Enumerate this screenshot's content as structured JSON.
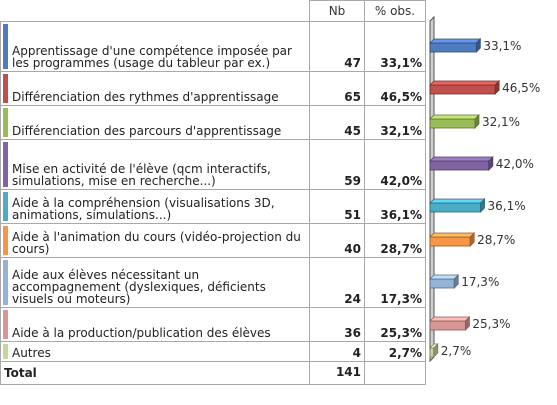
{
  "table": {
    "headers": {
      "nb": "Nb",
      "pct": "% obs."
    },
    "rows": [
      {
        "label": "Apprentissage d'une compétence imposée par les programmes (usage du tableur par ex.)",
        "nb": "47",
        "pct": "33,1%",
        "color": "#4f7bbf"
      },
      {
        "label": "Différenciation des rythmes d'apprentissage",
        "nb": "65",
        "pct": "46,5%",
        "color": "#c0504d"
      },
      {
        "label": "Différenciation des parcours d'apprentissage",
        "nb": "45",
        "pct": "32,1%",
        "color": "#9bbb59"
      },
      {
        "label": "Mise en activité de l'élève (qcm interactifs, simulations, mise en recherche...)",
        "nb": "59",
        "pct": "42,0%",
        "color": "#8064a2"
      },
      {
        "label": "Aide à la compréhension (visualisations 3D, animations, simulations...)",
        "nb": "51",
        "pct": "36,1%",
        "color": "#4bacc6"
      },
      {
        "label": "Aide à l'animation du cours (vidéo-projection du cours)",
        "nb": "40",
        "pct": "28,7%",
        "color": "#f79646"
      },
      {
        "label": "Aide aux élèves nécessitant un accompagnement (dyslexiques, déficients visuels ou moteurs)",
        "nb": "24",
        "pct": "17,3%",
        "color": "#95b3d7"
      },
      {
        "label": "Aide à la production/publication des élèves",
        "nb": "36",
        "pct": "25,3%",
        "color": "#d99694"
      },
      {
        "label": "Autres",
        "nb": "4",
        "pct": "2,7%",
        "color": "#c3d69b"
      }
    ],
    "total": {
      "label": "Total",
      "nb": "141"
    }
  },
  "chart_data": {
    "type": "bar",
    "orientation": "horizontal",
    "categories": [
      "Apprentissage d'une compétence imposée par les programmes (usage du tableur par ex.)",
      "Différenciation des rythmes d'apprentissage",
      "Différenciation des parcours d'apprentissage",
      "Mise en activité de l'élève (qcm interactifs, simulations, mise en recherche...)",
      "Aide à la compréhension (visualisations 3D, animations, simulations...)",
      "Aide à l'animation du cours (vidéo-projection du cours)",
      "Aide aux élèves nécessitant un accompagnement (dyslexiques, déficients visuels ou moteurs)",
      "Aide à la production/publication des élèves",
      "Autres"
    ],
    "values": [
      33.1,
      46.5,
      32.1,
      42.0,
      36.1,
      28.7,
      17.3,
      25.3,
      2.7
    ],
    "value_labels": [
      "33,1%",
      "46,5%",
      "32,1%",
      "42,0%",
      "36,1%",
      "28,7%",
      "17,3%",
      "25,3%",
      "2,7%"
    ],
    "colors": [
      "#4f7bbf",
      "#c0504d",
      "#9bbb59",
      "#8064a2",
      "#4bacc6",
      "#f79646",
      "#95b3d7",
      "#d99694",
      "#c3d69b"
    ],
    "xlim": [
      0,
      50
    ],
    "style": "3d",
    "grid": false
  }
}
